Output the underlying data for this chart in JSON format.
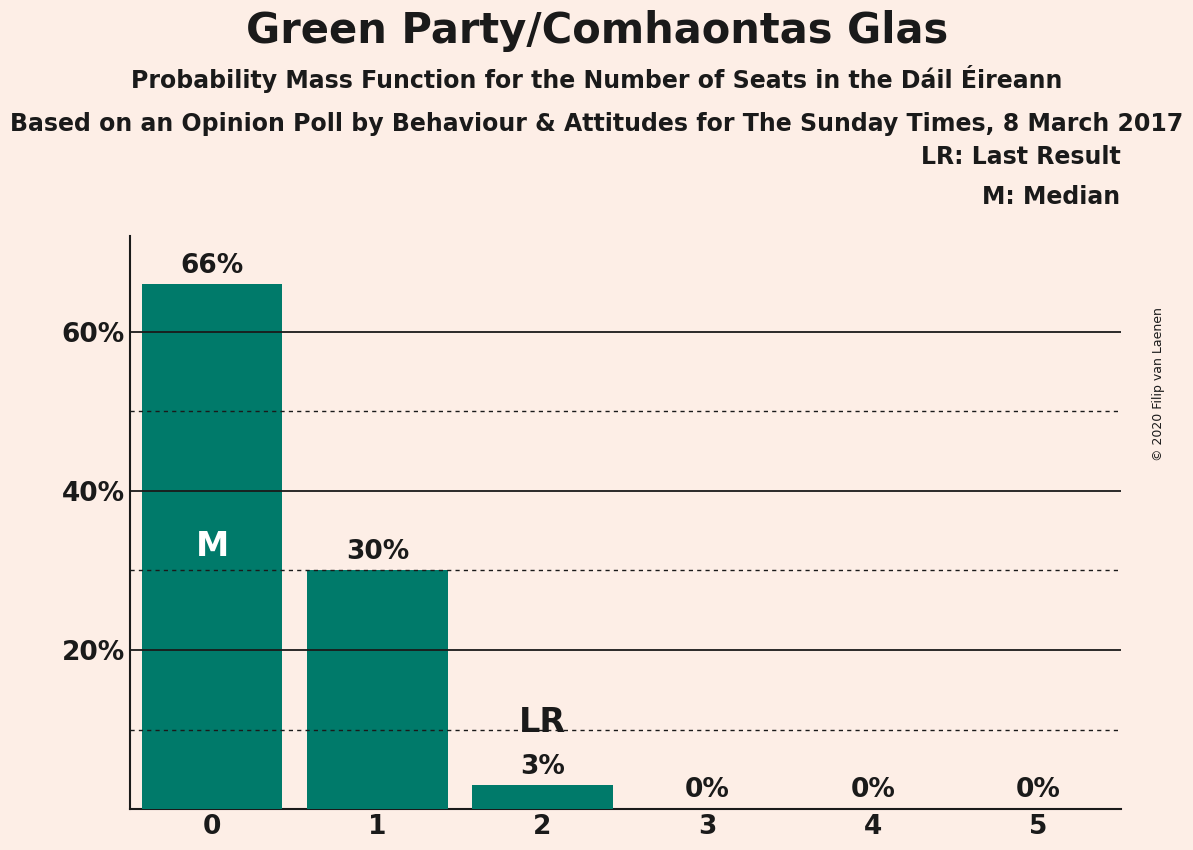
{
  "title": "Green Party/Comhaontas Glas",
  "subtitle1": "Probability Mass Function for the Number of Seats in the Dáil Éireann",
  "subtitle2": "Based on an Opinion Poll by Behaviour & Attitudes for The Sunday Times, 8 March 2017",
  "copyright": "© 2020 Filip van Laenen",
  "categories": [
    0,
    1,
    2,
    3,
    4,
    5
  ],
  "values": [
    0.66,
    0.3,
    0.03,
    0.0,
    0.0,
    0.0
  ],
  "labels": [
    "66%",
    "30%",
    "3%",
    "0%",
    "0%",
    "0%"
  ],
  "bar_color": "#007a6a",
  "background_color": "#fdeee6",
  "text_color": "#1a1a1a",
  "ylabel_ticks": [
    0.0,
    0.2,
    0.4,
    0.6
  ],
  "ylabel_labels": [
    "",
    "20%",
    "40%",
    "60%"
  ],
  "solid_gridlines": [
    0.2,
    0.4,
    0.6
  ],
  "dotted_gridlines": [
    0.1,
    0.3,
    0.5
  ],
  "median_bar": 0,
  "last_result_bar": 2,
  "legend_lr": "LR: Last Result",
  "legend_m": "M: Median",
  "annotation_lr": "LR",
  "annotation_m": "M",
  "ylim": [
    0,
    0.72
  ],
  "title_fontsize": 30,
  "subtitle1_fontsize": 17,
  "subtitle2_fontsize": 17,
  "bar_label_fontsize": 19,
  "tick_fontsize": 19,
  "legend_fontsize": 17,
  "annotation_fontsize": 24,
  "copyright_fontsize": 9
}
